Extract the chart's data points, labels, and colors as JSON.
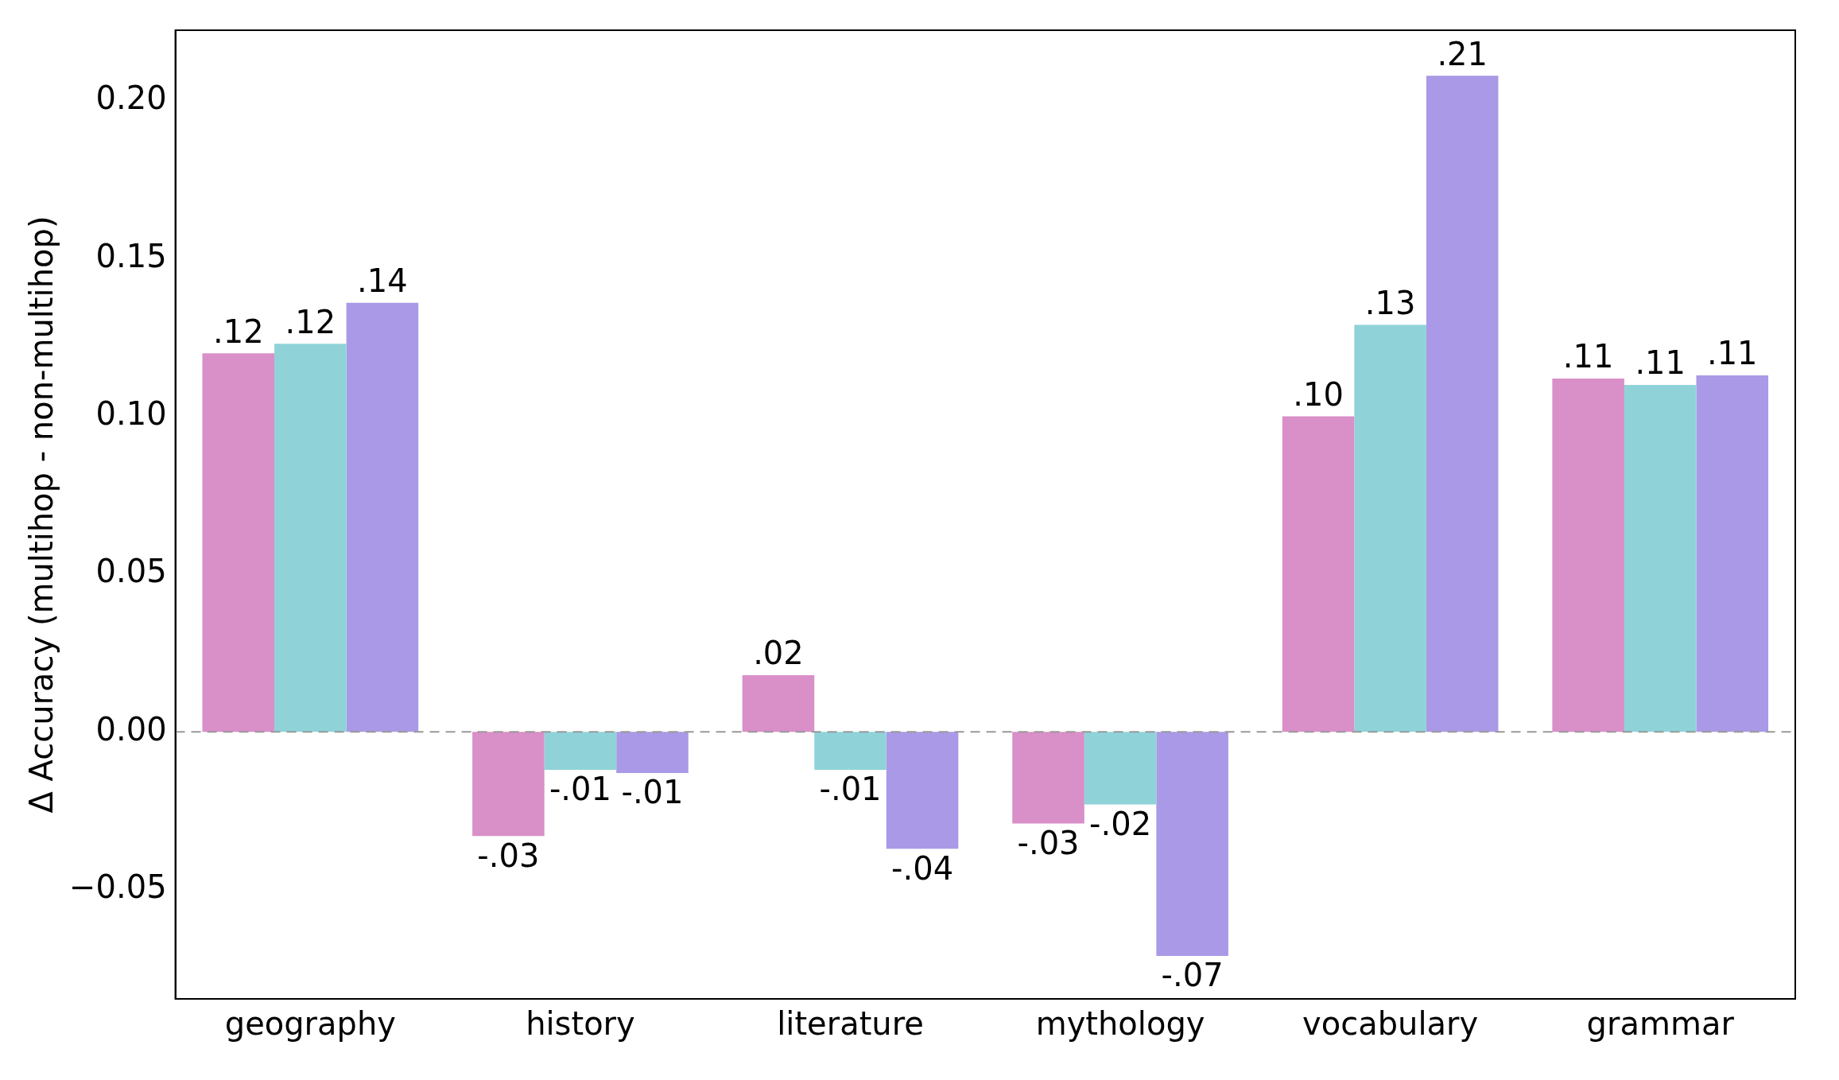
{
  "chart_data": {
    "type": "bar",
    "ylabel": "Δ Accuracy (multihop - non-multihop)",
    "categories": [
      "geography",
      "history",
      "literature",
      "mythology",
      "vocabulary",
      "grammar"
    ],
    "series": [
      {
        "color": "#d98fc8",
        "values": [
          0.12,
          -0.033,
          0.018,
          -0.029,
          0.1,
          0.112
        ],
        "value_labels": [
          ".12",
          "-.03",
          ".02",
          "-.03",
          ".10",
          ".11"
        ]
      },
      {
        "color": "#8fd3d9",
        "values": [
          0.123,
          -0.012,
          -0.012,
          -0.023,
          0.129,
          0.11
        ],
        "value_labels": [
          ".12",
          "-.01",
          "-.01",
          "-.02",
          ".13",
          ".11"
        ]
      },
      {
        "color": "#aa99e6",
        "values": [
          0.136,
          -0.013,
          -0.037,
          -0.071,
          0.208,
          0.113
        ],
        "value_labels": [
          ".14",
          "-.01",
          "-.04",
          "-.07",
          ".21",
          ".11"
        ]
      }
    ],
    "ylim": [
      -0.0846,
      0.2224
    ],
    "yticks": [
      {
        "value": -0.05,
        "label": "−0.05"
      },
      {
        "value": 0,
        "label": "0.00"
      },
      {
        "value": 0.05,
        "label": "0.05"
      },
      {
        "value": 0.1,
        "label": "0.10"
      },
      {
        "value": 0.15,
        "label": "0.15"
      },
      {
        "value": 0.2,
        "label": "0.20"
      }
    ],
    "ref_lines": [
      {
        "axis": "y",
        "value": 0,
        "color": "#999999",
        "line_style": "dashed"
      }
    ],
    "grid": false,
    "legend": false
  }
}
